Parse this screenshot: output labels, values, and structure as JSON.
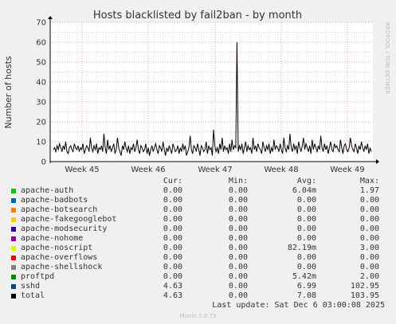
{
  "chart_data": {
    "type": "line",
    "title": "Hosts blacklisted by fail2ban - by month",
    "ylabel": "Number of hosts",
    "xlabel": "",
    "ylim": [
      0,
      70
    ],
    "yticks": [
      0,
      10,
      20,
      30,
      40,
      50,
      60,
      70
    ],
    "xticks": [
      "Week 45",
      "Week 46",
      "Week 47",
      "Week 48",
      "Week 49"
    ],
    "grid": true,
    "legend_placement": "bottom",
    "series": [
      {
        "name": "apache-auth",
        "color": "#00cc00",
        "values": [
          0,
          0,
          0,
          0,
          0,
          0,
          0,
          0,
          0,
          0,
          0,
          0,
          0,
          0,
          0,
          0,
          0,
          0,
          0,
          0,
          0,
          0,
          0,
          0,
          0,
          0,
          0,
          0,
          0,
          0,
          0,
          0,
          0,
          0,
          0,
          0,
          0,
          0,
          0,
          0,
          0,
          0,
          0,
          0,
          0,
          0,
          0,
          0,
          0,
          0,
          0,
          0,
          0,
          0,
          0,
          0,
          0,
          0,
          0,
          0,
          0,
          0,
          0,
          0,
          0,
          0,
          0,
          0,
          0,
          0,
          0,
          0,
          0,
          0,
          0,
          0,
          0,
          0,
          0,
          0,
          0,
          0,
          0,
          0,
          0,
          0,
          0,
          0,
          0,
          0,
          0,
          0,
          0,
          0,
          0,
          0,
          0,
          0,
          0,
          0,
          0,
          0,
          0,
          0,
          0,
          0,
          0,
          0,
          0,
          0,
          0,
          0,
          0,
          0,
          0,
          0,
          0,
          0,
          0,
          0,
          0,
          0,
          0,
          0,
          0,
          0,
          0,
          0,
          0,
          0,
          0,
          0,
          0,
          0,
          0,
          0,
          0,
          0,
          0,
          0,
          0,
          0,
          0,
          0,
          0,
          0,
          0,
          0,
          0,
          0,
          0,
          0,
          0,
          0,
          0,
          0,
          0,
          0,
          0,
          0,
          0,
          0,
          0,
          0,
          0,
          0,
          0,
          0,
          0,
          0,
          0,
          0,
          0,
          0,
          0,
          0,
          0,
          0,
          0,
          0,
          0,
          0,
          0,
          0,
          0,
          0,
          0,
          0,
          0,
          0,
          0,
          0,
          0,
          0,
          0,
          0,
          0,
          0,
          0,
          0,
          0,
          0,
          0,
          0,
          0,
          0,
          0,
          0,
          0,
          0,
          0,
          0,
          0,
          0,
          0,
          0,
          0,
          0,
          0,
          0,
          0,
          0,
          0,
          0,
          0,
          0,
          0,
          0,
          0,
          0,
          0,
          0,
          0,
          0,
          0,
          0,
          0,
          0,
          0,
          0,
          0,
          0,
          0,
          0,
          0,
          0,
          0,
          0,
          0,
          0,
          0,
          0,
          0,
          0,
          0,
          0,
          0,
          0,
          0,
          0,
          0,
          0,
          0,
          0,
          0,
          0,
          0,
          0,
          0,
          0,
          0,
          0,
          0,
          0,
          0,
          0,
          0,
          0,
          0,
          0,
          0,
          0,
          0,
          0,
          0,
          0,
          0,
          0,
          0,
          0,
          0,
          0,
          0,
          0,
          0,
          0,
          0,
          0,
          0,
          0,
          0,
          0,
          0,
          0,
          0,
          0,
          0,
          0,
          0,
          0,
          0,
          0,
          0,
          0,
          0,
          0,
          0,
          0,
          0,
          0,
          0,
          0,
          0,
          0,
          0,
          0,
          0,
          0,
          0,
          0,
          0,
          0,
          0,
          0,
          0,
          0,
          0,
          0,
          0,
          0,
          0,
          0,
          0,
          0,
          0,
          0,
          0,
          0,
          0,
          0,
          0,
          0,
          0,
          0,
          0,
          0,
          0,
          0,
          0,
          0,
          0,
          0,
          0,
          0,
          0,
          0,
          0,
          0,
          0,
          0,
          0,
          0,
          0,
          0,
          0,
          0,
          0,
          0,
          0,
          0,
          0,
          0,
          0,
          0,
          0,
          0,
          0,
          0,
          0,
          0,
          0,
          0,
          0,
          0,
          0,
          0,
          0,
          0,
          0,
          0
        ]
      },
      {
        "name": "total",
        "color": "#000000",
        "values": [
          6,
          7,
          5,
          8,
          6,
          9,
          7,
          5,
          8,
          6,
          10,
          5,
          4,
          7,
          8,
          6,
          5,
          9,
          7,
          6,
          8,
          5,
          7,
          6,
          9,
          4,
          6,
          8,
          7,
          5,
          12,
          7,
          5,
          8,
          6,
          9,
          4,
          7,
          6,
          8,
          5,
          14,
          7,
          4,
          11,
          6,
          8,
          5,
          7,
          9,
          4,
          6,
          12,
          7,
          5,
          3,
          8,
          6,
          10,
          7,
          5,
          8,
          4,
          7,
          6,
          9,
          5,
          7,
          11,
          6,
          4,
          8,
          7,
          5,
          6,
          9,
          4,
          7,
          3,
          6,
          8,
          5,
          7,
          9,
          6,
          4,
          8,
          7,
          5,
          10,
          6,
          3,
          7,
          5,
          8,
          6,
          4,
          9,
          7,
          5,
          6,
          8,
          4,
          7,
          5,
          9,
          6,
          8,
          3,
          5,
          7,
          13,
          6,
          4,
          8,
          7,
          5,
          9,
          6,
          3,
          8,
          7,
          5,
          6,
          10,
          4,
          8,
          6,
          7,
          3,
          16,
          8,
          5,
          7,
          4,
          9,
          6,
          12,
          5,
          8,
          6,
          7,
          4,
          9,
          5,
          11,
          6,
          8,
          7,
          60,
          5,
          8,
          6,
          9,
          4,
          7,
          10,
          5,
          8,
          6,
          7,
          4,
          12,
          6,
          8,
          5,
          9,
          7,
          6,
          4,
          10,
          7,
          5,
          8,
          6,
          9,
          4,
          7,
          5,
          11,
          6,
          8,
          7,
          5,
          9,
          6,
          4,
          12,
          7,
          5,
          8,
          6,
          14,
          7,
          5,
          9,
          6,
          8,
          4,
          10,
          7,
          5,
          8,
          12,
          6,
          9,
          7,
          5,
          8,
          4,
          11,
          6,
          9,
          7,
          5,
          8,
          6,
          13,
          7,
          5,
          9,
          6,
          8,
          4,
          7,
          10,
          6,
          5,
          9,
          7,
          8,
          6,
          5,
          11,
          7,
          4,
          8,
          9,
          6,
          5,
          7,
          12,
          8,
          6,
          5,
          9,
          7,
          4,
          8,
          6,
          10,
          7,
          5,
          8,
          6,
          9,
          4,
          7,
          5
        ]
      }
    ]
  },
  "legend": {
    "headers": {
      "cur": "Cur:",
      "min": "Min:",
      "avg": "Avg:",
      "max": "Max:"
    },
    "rows": [
      {
        "name": "apache-auth",
        "color": "#00cc00",
        "cur": "0.00",
        "min": "0.00",
        "avg": "6.04m",
        "max": "1.97"
      },
      {
        "name": "apache-badbots",
        "color": "#0066b3",
        "cur": "0.00",
        "min": "0.00",
        "avg": "0.00",
        "max": "0.00"
      },
      {
        "name": "apache-botsearch",
        "color": "#ff8000",
        "cur": "0.00",
        "min": "0.00",
        "avg": "0.00",
        "max": "0.00"
      },
      {
        "name": "apache-fakegooglebot",
        "color": "#ffcc00",
        "cur": "0.00",
        "min": "0.00",
        "avg": "0.00",
        "max": "0.00"
      },
      {
        "name": "apache-modsecurity",
        "color": "#330099",
        "cur": "0.00",
        "min": "0.00",
        "avg": "0.00",
        "max": "0.00"
      },
      {
        "name": "apache-nohome",
        "color": "#990099",
        "cur": "0.00",
        "min": "0.00",
        "avg": "0.00",
        "max": "0.00"
      },
      {
        "name": "apache-noscript",
        "color": "#ccff00",
        "cur": "0.00",
        "min": "0.00",
        "avg": "82.19m",
        "max": "3.00"
      },
      {
        "name": "apache-overflows",
        "color": "#ff0000",
        "cur": "0.00",
        "min": "0.00",
        "avg": "0.00",
        "max": "0.00"
      },
      {
        "name": "apache-shellshock",
        "color": "#808080",
        "cur": "0.00",
        "min": "0.00",
        "avg": "0.00",
        "max": "0.00"
      },
      {
        "name": "proftpd",
        "color": "#008f00",
        "cur": "0.00",
        "min": "0.00",
        "avg": "5.42m",
        "max": "2.00"
      },
      {
        "name": "sshd",
        "color": "#00487d",
        "cur": "4.63",
        "min": "0.00",
        "avg": "6.99",
        "max": "102.95"
      },
      {
        "name": "total",
        "color": "#000000",
        "cur": "4.63",
        "min": "0.00",
        "avg": "7.08",
        "max": "103.95"
      }
    ]
  },
  "last_update": "Last update: Sat Dec  6 03:00:08 2025",
  "footer": "Munin 2.0.73",
  "side_label": "RRDTOOL / TOBI OETIKER"
}
